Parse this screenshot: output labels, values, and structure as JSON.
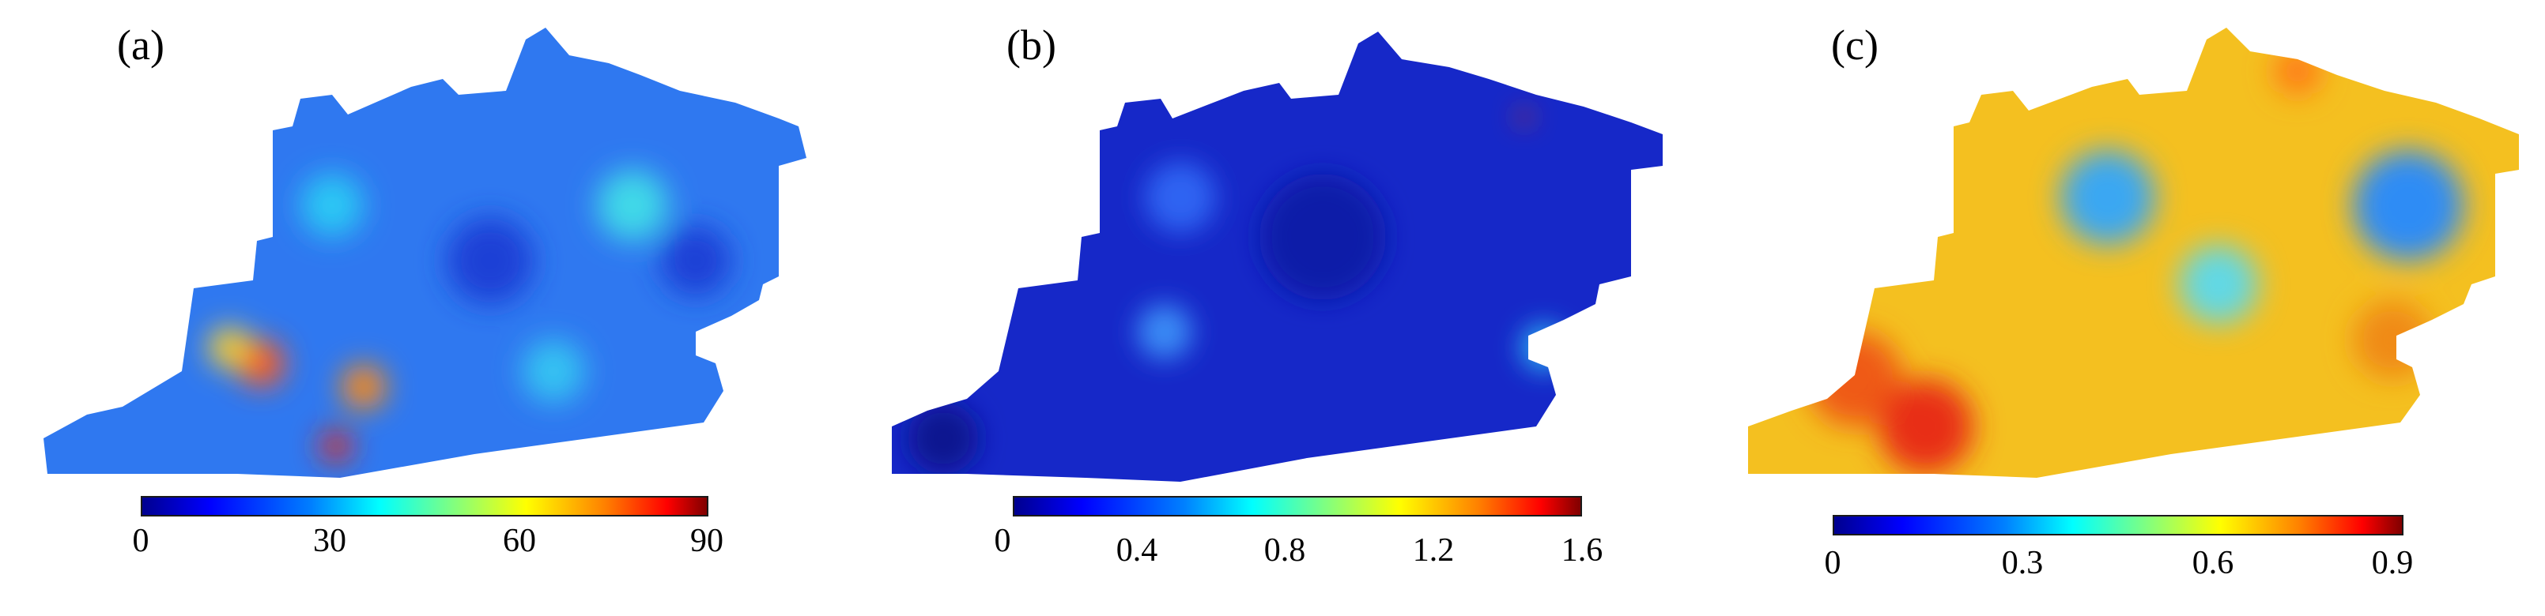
{
  "panels": [
    {
      "label": "(a)",
      "colorbar": {
        "ticks": [
          "0",
          "30",
          "60",
          "90"
        ],
        "min": 0,
        "max": 90
      },
      "base": "#2f78f0",
      "hotspots": [
        {
          "color": "#29c8f4"
        },
        {
          "color": "#3fd9e8"
        },
        {
          "color": "#ff5a1a"
        },
        {
          "color": "#ff8a10"
        },
        {
          "color": "#e22a18"
        },
        {
          "color": "#ffd22a"
        },
        {
          "color": "#1f3fd6"
        },
        {
          "color": "#1f3fd6"
        },
        {
          "color": "#34c2f2"
        }
      ]
    },
    {
      "label": "(b)",
      "colorbar": {
        "ticks": [
          "0",
          "0.4",
          "0.8",
          "1.2",
          "1.6"
        ],
        "min": 0,
        "max": 1.6
      },
      "base": "#1628c8",
      "hotspots": [
        {
          "color": "#0d1aa8"
        },
        {
          "color": "#2f63f2"
        },
        {
          "color": "#2aa8f0"
        },
        {
          "color": "#0b1290"
        },
        {
          "color": "#e83a1a"
        },
        {
          "color": "#3a8af5"
        }
      ]
    },
    {
      "label": "(c)",
      "colorbar": {
        "ticks": [
          "0",
          "0.3",
          "0.6",
          "0.9"
        ],
        "min": 0,
        "max": 0.9
      },
      "base": "#f4c020",
      "hotspots": [
        {
          "color": "#3aa7f2"
        },
        {
          "color": "#ef5a18"
        },
        {
          "color": "#e82f16"
        },
        {
          "color": "#2f8cf5"
        },
        {
          "color": "#f08a18"
        },
        {
          "color": "#62d8e4"
        },
        {
          "color": "#ff7a18"
        }
      ]
    }
  ]
}
